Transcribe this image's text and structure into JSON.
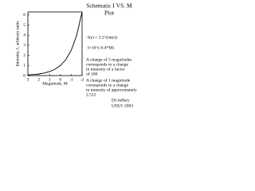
{
  "chart_data": {
    "type": "line",
    "title": "Schematic I VS. M",
    "subtitle": "Plot",
    "x_label": "Magnitude, M",
    "y_label": "Intensity, I, arbitrary units",
    "x": [
      3,
      2.5,
      2,
      1.5,
      1,
      0.5,
      0,
      -0.5,
      -1,
      -1.5,
      -2
    ],
    "series": [
      {
        "color": "#000000",
        "values": [
          0.063,
          0.1,
          0.158,
          0.251,
          0.398,
          0.631,
          1,
          1.585,
          2.512,
          3.981,
          6.31
        ]
      }
    ],
    "xlim": [
      3,
      -2
    ],
    "xticks": [
      3,
      2,
      1,
      0,
      -1,
      -2
    ],
    "ylim": [
      0,
      6.3
    ],
    "yticks": [
      0,
      1,
      2,
      3,
      4,
      5,
      6
    ],
    "annotations": [
      "I(e) = 2.5^(m(e))",
      "I=10^(-0.4*M)",
      "A change of 5 magnitudes",
      "corresponds to a change",
      "in intensity of a factor",
      "of 100",
      "A change of 1 magnitude",
      "corresponds to a change",
      "in intensity of approximately",
      "2.512",
      "DJ Jeffery",
      "UNLV 2003"
    ]
  }
}
